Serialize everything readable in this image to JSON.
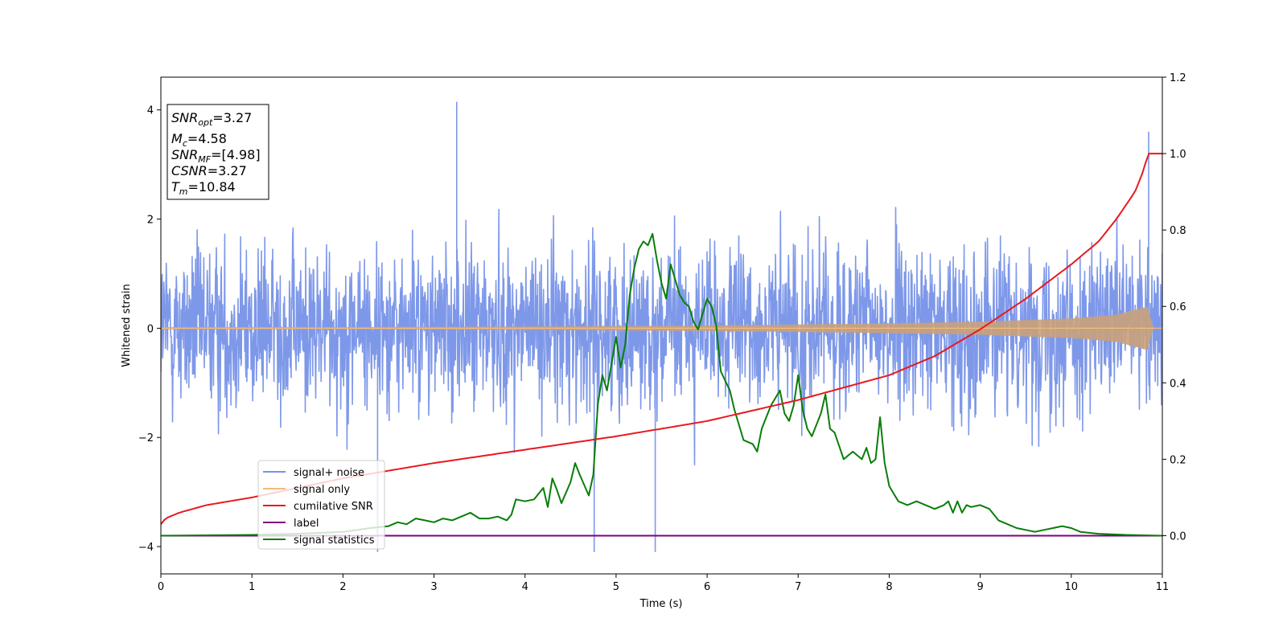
{
  "chart_data": {
    "type": "line",
    "xlabel": "Time (s)",
    "ylabel": "Whitened strain",
    "xlim": [
      0,
      11
    ],
    "ylim": [
      -4.5,
      4.6
    ],
    "y2lim": [
      -0.1,
      1.2
    ],
    "x_ticks": [
      "0",
      "1",
      "2",
      "3",
      "4",
      "5",
      "6",
      "7",
      "8",
      "9",
      "10",
      "11"
    ],
    "y_ticks": [
      "−4",
      "−2",
      "0",
      "2",
      "4"
    ],
    "y2_ticks": [
      "0.0",
      "0.2",
      "0.4",
      "0.6",
      "0.8",
      "1.0",
      "1.2"
    ],
    "grid": false,
    "legend_position": "lower-left",
    "info_box": {
      "lines": [
        {
          "symbol": "SNR",
          "sub": "opt",
          "value": "=3.27"
        },
        {
          "symbol": "M",
          "sub": "c",
          "value": "=4.58"
        },
        {
          "symbol": "SNR",
          "sub": "MF",
          "value": "=[4.98]"
        },
        {
          "symbol": "CSNR",
          "sub": "",
          "value": "=3.27"
        },
        {
          "symbol": "T",
          "sub": "m",
          "value": "=10.84"
        }
      ]
    },
    "series": [
      {
        "name": "signal+ noise",
        "color": "#7792e8",
        "axis": "left",
        "kind": "noise",
        "envelope_peak": 4.2,
        "envelope_min": -4.1,
        "notable_spikes": [
          {
            "x": 3.25,
            "y": 4.15
          },
          {
            "x": 4.76,
            "y": -4.1
          },
          {
            "x": 5.43,
            "y": -4.1
          },
          {
            "x": 2.38,
            "y": -4.1
          },
          {
            "x": 10.85,
            "y": 3.6
          }
        ]
      },
      {
        "name": "signal only",
        "color": "#f4b97a",
        "axis": "left",
        "kind": "chirp",
        "amplitude_envelope": {
          "x": [
            0,
            2,
            4,
            6,
            7,
            8,
            9,
            10,
            10.5,
            10.84,
            10.9,
            11
          ],
          "y": [
            0.02,
            0.02,
            0.03,
            0.05,
            0.07,
            0.09,
            0.12,
            0.18,
            0.25,
            0.4,
            0,
            0
          ]
        }
      },
      {
        "name": "cumilative SNR",
        "color": "#e8191e",
        "axis": "right",
        "x": [
          0,
          0.05,
          0.2,
          0.5,
          1,
          2,
          3,
          4,
          5,
          6,
          7,
          8,
          8.5,
          9,
          9.5,
          10,
          10.3,
          10.5,
          10.7,
          10.8,
          10.84,
          11
        ],
        "y": [
          0.03,
          0.045,
          0.06,
          0.08,
          0.1,
          0.15,
          0.19,
          0.225,
          0.26,
          0.3,
          0.355,
          0.42,
          0.47,
          0.54,
          0.62,
          0.71,
          0.77,
          0.83,
          0.9,
          0.96,
          1.0,
          1.0
        ]
      },
      {
        "name": "label",
        "color": "#800080",
        "axis": "right",
        "x": [
          0,
          11
        ],
        "y": [
          0,
          0
        ]
      },
      {
        "name": "signal statistics",
        "color": "#0a7d0a",
        "axis": "right",
        "x": [
          0,
          0.5,
          1,
          1.5,
          2,
          2.3,
          2.5,
          2.6,
          2.7,
          2.8,
          2.9,
          3.0,
          3.1,
          3.2,
          3.3,
          3.4,
          3.5,
          3.6,
          3.7,
          3.8,
          3.85,
          3.9,
          4.0,
          4.1,
          4.2,
          4.25,
          4.3,
          4.35,
          4.4,
          4.5,
          4.55,
          4.6,
          4.7,
          4.75,
          4.8,
          4.85,
          4.9,
          5.0,
          5.05,
          5.1,
          5.15,
          5.2,
          5.25,
          5.3,
          5.35,
          5.4,
          5.45,
          5.5,
          5.55,
          5.6,
          5.7,
          5.75,
          5.8,
          5.85,
          5.9,
          6.0,
          6.05,
          6.1,
          6.15,
          6.25,
          6.3,
          6.4,
          6.5,
          6.55,
          6.6,
          6.7,
          6.8,
          6.85,
          6.9,
          6.95,
          7.0,
          7.05,
          7.1,
          7.15,
          7.25,
          7.3,
          7.35,
          7.4,
          7.5,
          7.6,
          7.7,
          7.75,
          7.8,
          7.85,
          7.9,
          7.95,
          8.0,
          8.05,
          8.1,
          8.2,
          8.3,
          8.4,
          8.5,
          8.6,
          8.65,
          8.7,
          8.75,
          8.8,
          8.85,
          8.9,
          9.0,
          9.1,
          9.2,
          9.3,
          9.4,
          9.5,
          9.6,
          9.7,
          9.8,
          9.9,
          10.0,
          10.1,
          10.3,
          10.6,
          11
        ],
        "y": [
          0.0,
          0.001,
          0.002,
          0.005,
          0.01,
          0.02,
          0.025,
          0.035,
          0.03,
          0.045,
          0.04,
          0.035,
          0.045,
          0.04,
          0.05,
          0.06,
          0.045,
          0.045,
          0.05,
          0.04,
          0.055,
          0.095,
          0.09,
          0.095,
          0.125,
          0.075,
          0.15,
          0.12,
          0.085,
          0.14,
          0.19,
          0.16,
          0.105,
          0.16,
          0.345,
          0.42,
          0.38,
          0.52,
          0.44,
          0.5,
          0.63,
          0.7,
          0.75,
          0.77,
          0.76,
          0.79,
          0.72,
          0.66,
          0.62,
          0.71,
          0.63,
          0.61,
          0.6,
          0.56,
          0.54,
          0.62,
          0.6,
          0.55,
          0.43,
          0.38,
          0.33,
          0.25,
          0.24,
          0.22,
          0.28,
          0.34,
          0.38,
          0.32,
          0.3,
          0.34,
          0.42,
          0.33,
          0.28,
          0.26,
          0.32,
          0.37,
          0.28,
          0.27,
          0.2,
          0.22,
          0.2,
          0.23,
          0.19,
          0.2,
          0.31,
          0.19,
          0.13,
          0.11,
          0.09,
          0.08,
          0.09,
          0.08,
          0.07,
          0.08,
          0.09,
          0.06,
          0.09,
          0.06,
          0.08,
          0.075,
          0.08,
          0.07,
          0.04,
          0.03,
          0.02,
          0.015,
          0.01,
          0.015,
          0.02,
          0.025,
          0.02,
          0.01,
          0.005,
          0.002,
          0.0
        ]
      }
    ]
  }
}
